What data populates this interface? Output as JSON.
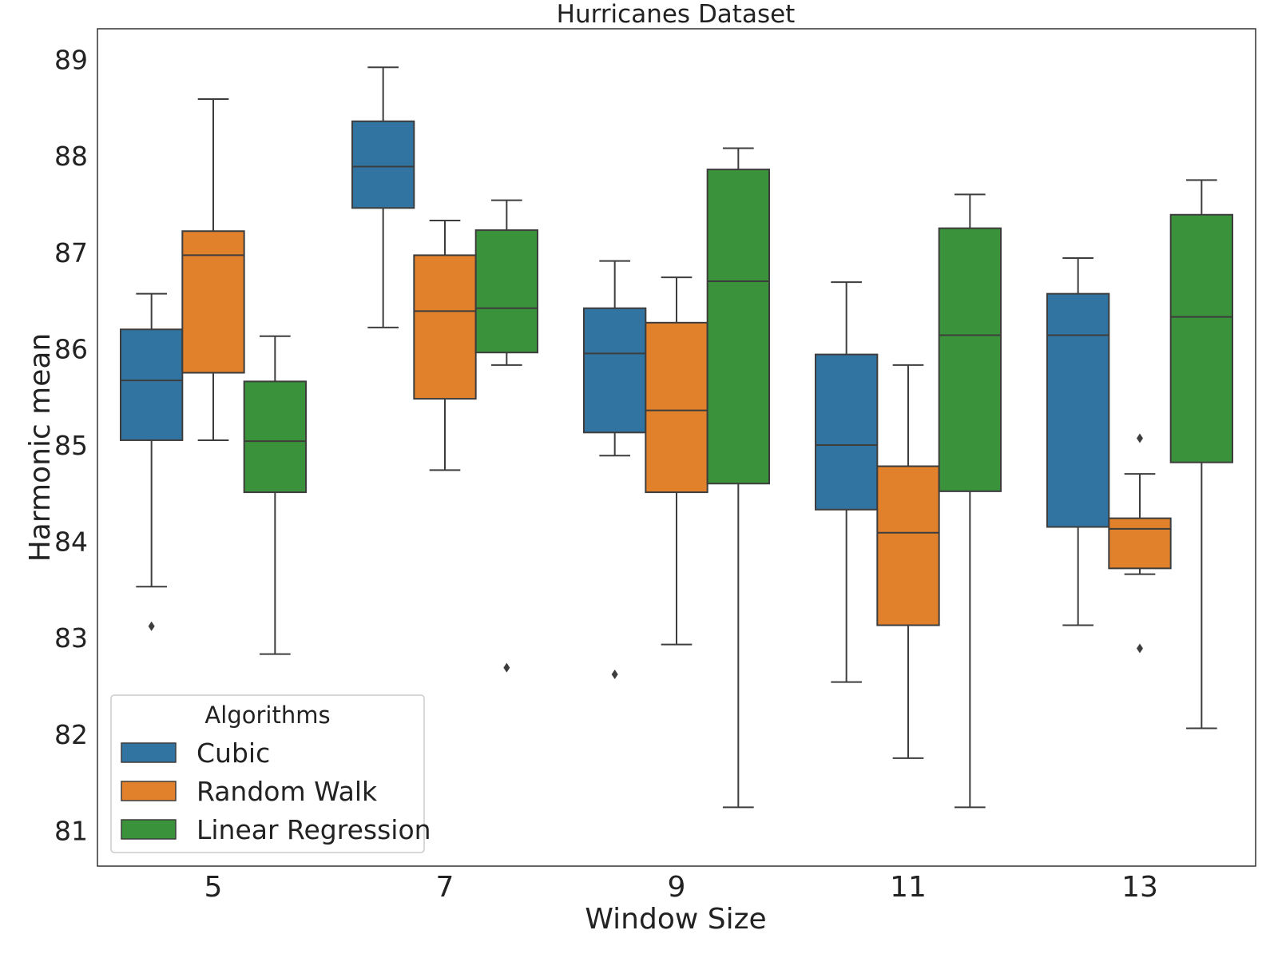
{
  "chart_data": {
    "type": "box",
    "title": "Hurricanes Dataset",
    "xlabel": "Window Size",
    "ylabel": "Harmonic mean",
    "ylim": [
      80.63,
      89.32
    ],
    "yticks": [
      81,
      82,
      83,
      84,
      85,
      86,
      87,
      88,
      89
    ],
    "categories": [
      "5",
      "7",
      "9",
      "11",
      "13"
    ],
    "grid": false,
    "legend": {
      "title": "Algorithms",
      "placement": "bottom-left"
    },
    "series": [
      {
        "name": "Cubic",
        "color": "#3274a1",
        "boxes": [
          {
            "whislo": 83.53,
            "q1": 85.05,
            "med": 85.67,
            "q3": 86.2,
            "whishi": 86.57,
            "fliers": [
              83.12
            ]
          },
          {
            "whislo": 86.22,
            "q1": 87.46,
            "med": 87.89,
            "q3": 88.36,
            "whishi": 88.92,
            "fliers": []
          },
          {
            "whislo": 84.89,
            "q1": 85.13,
            "med": 85.95,
            "q3": 86.42,
            "whishi": 86.91,
            "fliers": [
              82.62
            ]
          },
          {
            "whislo": 82.54,
            "q1": 84.33,
            "med": 85.0,
            "q3": 85.94,
            "whishi": 86.69,
            "fliers": []
          },
          {
            "whislo": 83.13,
            "q1": 84.15,
            "med": 86.14,
            "q3": 86.57,
            "whishi": 86.94,
            "fliers": []
          }
        ]
      },
      {
        "name": "Random Walk",
        "color": "#e1812c",
        "boxes": [
          {
            "whislo": 85.05,
            "q1": 85.75,
            "med": 86.97,
            "q3": 87.22,
            "whishi": 88.59,
            "fliers": []
          },
          {
            "whislo": 84.74,
            "q1": 85.48,
            "med": 86.39,
            "q3": 86.97,
            "whishi": 87.33,
            "fliers": []
          },
          {
            "whislo": 82.93,
            "q1": 84.51,
            "med": 85.36,
            "q3": 86.27,
            "whishi": 86.74,
            "fliers": []
          },
          {
            "whislo": 81.75,
            "q1": 83.13,
            "med": 84.09,
            "q3": 84.78,
            "whishi": 85.83,
            "fliers": []
          },
          {
            "whislo": 83.66,
            "q1": 83.72,
            "med": 84.13,
            "q3": 84.24,
            "whishi": 84.7,
            "fliers": [
              85.07,
              82.89
            ]
          }
        ]
      },
      {
        "name": "Linear Regression",
        "color": "#3a923a",
        "boxes": [
          {
            "whislo": 82.83,
            "q1": 84.51,
            "med": 85.04,
            "q3": 85.66,
            "whishi": 86.13,
            "fliers": []
          },
          {
            "whislo": 85.83,
            "q1": 85.96,
            "med": 86.42,
            "q3": 87.23,
            "whishi": 87.54,
            "fliers": [
              82.69
            ]
          },
          {
            "whislo": 81.24,
            "q1": 84.6,
            "med": 86.7,
            "q3": 87.86,
            "whishi": 88.08,
            "fliers": []
          },
          {
            "whislo": 81.24,
            "q1": 84.52,
            "med": 86.14,
            "q3": 87.25,
            "whishi": 87.6,
            "fliers": []
          },
          {
            "whislo": 82.06,
            "q1": 84.82,
            "med": 86.33,
            "q3": 87.39,
            "whishi": 87.75,
            "fliers": []
          }
        ]
      }
    ]
  }
}
